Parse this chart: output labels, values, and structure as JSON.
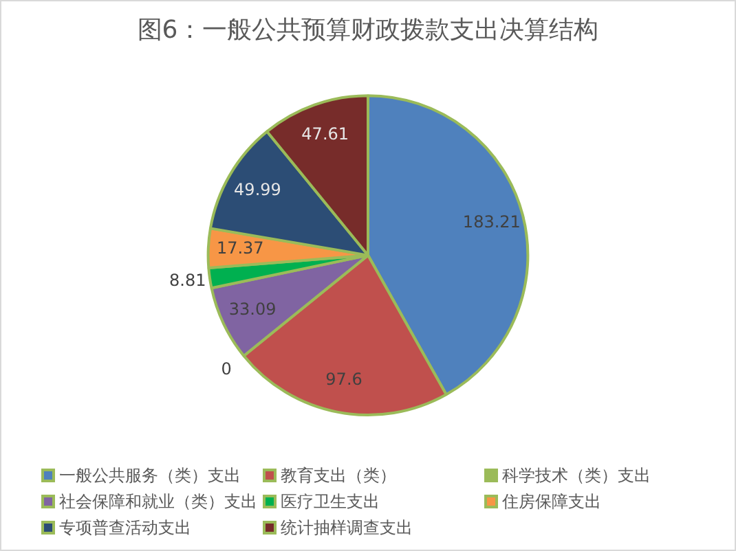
{
  "chart_data": {
    "type": "pie",
    "title": "图6：一般公共预算财政拨款支出决算结构",
    "categories": [
      "一般公共服务（类）支出",
      "教育支出（类）",
      "科学技术（类）支出",
      "社会保障和就业（类）支出",
      "医疗卫生支出",
      "住房保障支出",
      "专项普查活动支出",
      "统计抽样调查支出"
    ],
    "values": [
      183.21,
      97.6,
      0,
      33.09,
      8.81,
      17.37,
      49.99,
      47.61
    ],
    "value_labels": [
      "183.21",
      "97.6",
      "0",
      "33.09",
      "8.81",
      "17.37",
      "49.99",
      "47.61"
    ],
    "colors": [
      "#4f81bd",
      "#c0504d",
      "#9bbb59",
      "#8064a2",
      "#00b050",
      "#f79646",
      "#2c4d75",
      "#772c2a"
    ],
    "legend": "bottom"
  }
}
